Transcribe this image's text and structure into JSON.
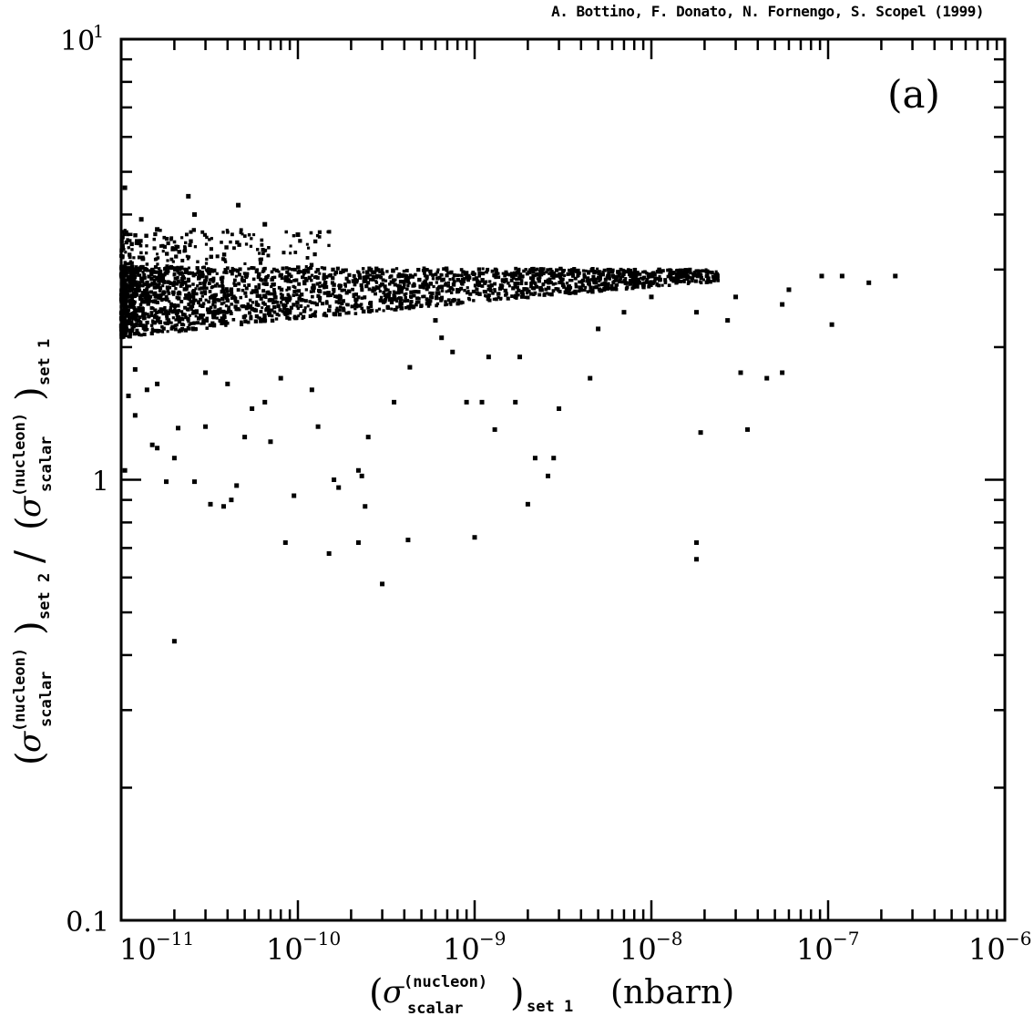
{
  "credit": "A. Bottino, F. Donato, N. Fornengo, S. Scopel (1999)",
  "panel_label": "(a)",
  "chart_data": {
    "type": "scatter",
    "xscale": "log",
    "yscale": "log",
    "xlim": [
      1e-11,
      1e-06
    ],
    "ylim": [
      0.1,
      10
    ],
    "grid": false,
    "x_tick_labels": [
      {
        "value": 1e-11,
        "base": "10",
        "exp": "−11"
      },
      {
        "value": 1e-10,
        "base": "10",
        "exp": "−10"
      },
      {
        "value": 1e-09,
        "base": "10",
        "exp": "−9"
      },
      {
        "value": 1e-08,
        "base": "10",
        "exp": "−8"
      },
      {
        "value": 1e-07,
        "base": "10",
        "exp": "−7"
      },
      {
        "value": 1e-06,
        "base": "10",
        "exp": "−6"
      }
    ],
    "y_tick_labels": [
      {
        "value": 0.1,
        "text": "0.1"
      },
      {
        "value": 1,
        "text": "1"
      },
      {
        "value": 10,
        "text": "10",
        "exp": "1"
      }
    ],
    "xlabel": {
      "sigma": "σ",
      "superscript": "(nucleon)",
      "subscript": "scalar",
      "set": "set 1",
      "unit": "(nbarn)"
    },
    "ylabel": {
      "sigma": "σ",
      "superscript": "(nucleon)",
      "subscript": "scalar",
      "set_num": "set 2",
      "set_den": "set 1"
    },
    "scatter_band": {
      "description_only_for_generation": "",
      "x_start": 1e-11,
      "x_end": 2.4e-08
    },
    "points": [
      [
        1.05e-11,
        4.6
      ],
      [
        1.3e-11,
        3.9
      ],
      [
        1.6e-11,
        3.7
      ],
      [
        2.4e-11,
        4.4
      ],
      [
        2.6e-11,
        4.0
      ],
      [
        4.6e-11,
        4.2
      ],
      [
        6.5e-11,
        3.8
      ],
      [
        1e-10,
        3.6
      ],
      [
        9.2e-08,
        2.9
      ],
      [
        1.2e-07,
        2.9
      ],
      [
        1.7e-07,
        2.8
      ],
      [
        2.4e-07,
        2.9
      ],
      [
        6e-08,
        2.7
      ],
      [
        5.5e-08,
        2.5
      ],
      [
        3e-08,
        2.6
      ],
      [
        2.7e-08,
        2.3
      ],
      [
        1.8e-08,
        2.4
      ],
      [
        1.05e-07,
        2.25
      ],
      [
        3.2e-08,
        1.75
      ],
      [
        4.5e-08,
        1.7
      ],
      [
        5.5e-08,
        1.75
      ],
      [
        3.5e-08,
        1.3
      ],
      [
        1.9e-08,
        1.28
      ],
      [
        1.8e-08,
        0.72
      ],
      [
        1.8e-08,
        0.66
      ],
      [
        1e-08,
        2.6
      ],
      [
        7e-09,
        2.4
      ],
      [
        5e-09,
        2.2
      ],
      [
        4.5e-09,
        1.7
      ],
      [
        3e-09,
        1.45
      ],
      [
        2.8e-09,
        1.12
      ],
      [
        2.6e-09,
        1.02
      ],
      [
        2.2e-09,
        1.12
      ],
      [
        2e-09,
        0.88
      ],
      [
        1.8e-09,
        1.9
      ],
      [
        1.7e-09,
        1.5
      ],
      [
        1.3e-09,
        1.3
      ],
      [
        1.1e-09,
        1.5
      ],
      [
        1e-09,
        0.74
      ],
      [
        9e-10,
        1.5
      ],
      [
        6e-10,
        2.3
      ],
      [
        4.2e-10,
        0.73
      ],
      [
        3e-10,
        0.58
      ],
      [
        3.5e-10,
        1.5
      ],
      [
        2.5e-10,
        1.25
      ],
      [
        2.4e-10,
        0.87
      ],
      [
        2.2e-10,
        0.72
      ],
      [
        2.2e-10,
        1.05
      ],
      [
        2.3e-10,
        1.02
      ],
      [
        1.6e-10,
        1.0
      ],
      [
        1.5e-10,
        0.68
      ],
      [
        1.7e-10,
        0.96
      ],
      [
        1.3e-10,
        1.32
      ],
      [
        9.5e-11,
        0.92
      ],
      [
        8.5e-11,
        0.72
      ],
      [
        7e-11,
        1.22
      ],
      [
        5e-11,
        1.25
      ],
      [
        4.5e-11,
        0.97
      ],
      [
        4.2e-11,
        0.9
      ],
      [
        3.8e-11,
        0.87
      ],
      [
        3.2e-11,
        0.88
      ],
      [
        3e-11,
        1.32
      ],
      [
        2.6e-11,
        0.99
      ],
      [
        2.1e-11,
        1.31
      ],
      [
        2e-11,
        1.12
      ],
      [
        1.8e-11,
        0.99
      ],
      [
        1.6e-11,
        1.18
      ],
      [
        1.5e-11,
        1.2
      ],
      [
        1.2e-11,
        1.4
      ],
      [
        1.05e-11,
        1.05
      ],
      [
        2e-11,
        0.43
      ],
      [
        1.1e-11,
        1.55
      ],
      [
        1.4e-11,
        1.6
      ],
      [
        1.6e-11,
        1.65
      ],
      [
        1.2e-11,
        1.78
      ],
      [
        5.5e-11,
        1.45
      ],
      [
        6.5e-11,
        1.5
      ],
      [
        8e-11,
        1.7
      ],
      [
        1.2e-10,
        1.6
      ],
      [
        3e-11,
        1.75
      ],
      [
        4e-11,
        1.65
      ],
      [
        4.3e-10,
        1.8
      ],
      [
        7.5e-10,
        1.95
      ],
      [
        1.2e-09,
        1.9
      ],
      [
        6.5e-10,
        2.1
      ]
    ]
  }
}
